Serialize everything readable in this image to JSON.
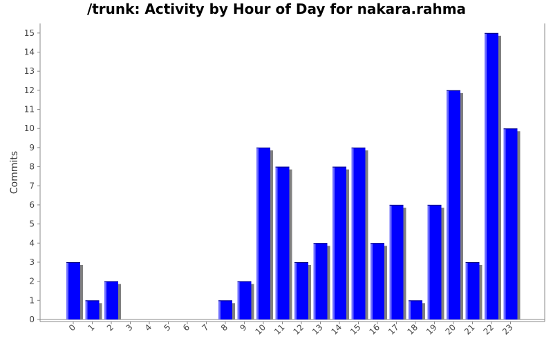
{
  "chart_data": {
    "type": "bar",
    "title": "/trunk: Activity by Hour of Day for nakara.rahma",
    "xlabel": "",
    "ylabel": "Commits",
    "categories": [
      "0",
      "1",
      "2",
      "3",
      "4",
      "5",
      "6",
      "7",
      "8",
      "9",
      "10",
      "11",
      "12",
      "13",
      "14",
      "15",
      "16",
      "17",
      "18",
      "19",
      "20",
      "21",
      "22",
      "23"
    ],
    "values": [
      3,
      1,
      2,
      0,
      0,
      0,
      0,
      0,
      1,
      2,
      9,
      8,
      3,
      4,
      8,
      9,
      4,
      6,
      1,
      6,
      12,
      3,
      15,
      10
    ],
    "ylim": [
      0,
      15.5
    ],
    "yticks": [
      0,
      1,
      2,
      3,
      4,
      5,
      6,
      7,
      8,
      9,
      10,
      11,
      12,
      13,
      14,
      15
    ],
    "grid": false,
    "colors": {
      "bar": "#0000ff",
      "bar_highlight": "#6f6fff",
      "bar_outline": "#000080",
      "shadow": "#808080",
      "axis": "#888888"
    }
  }
}
